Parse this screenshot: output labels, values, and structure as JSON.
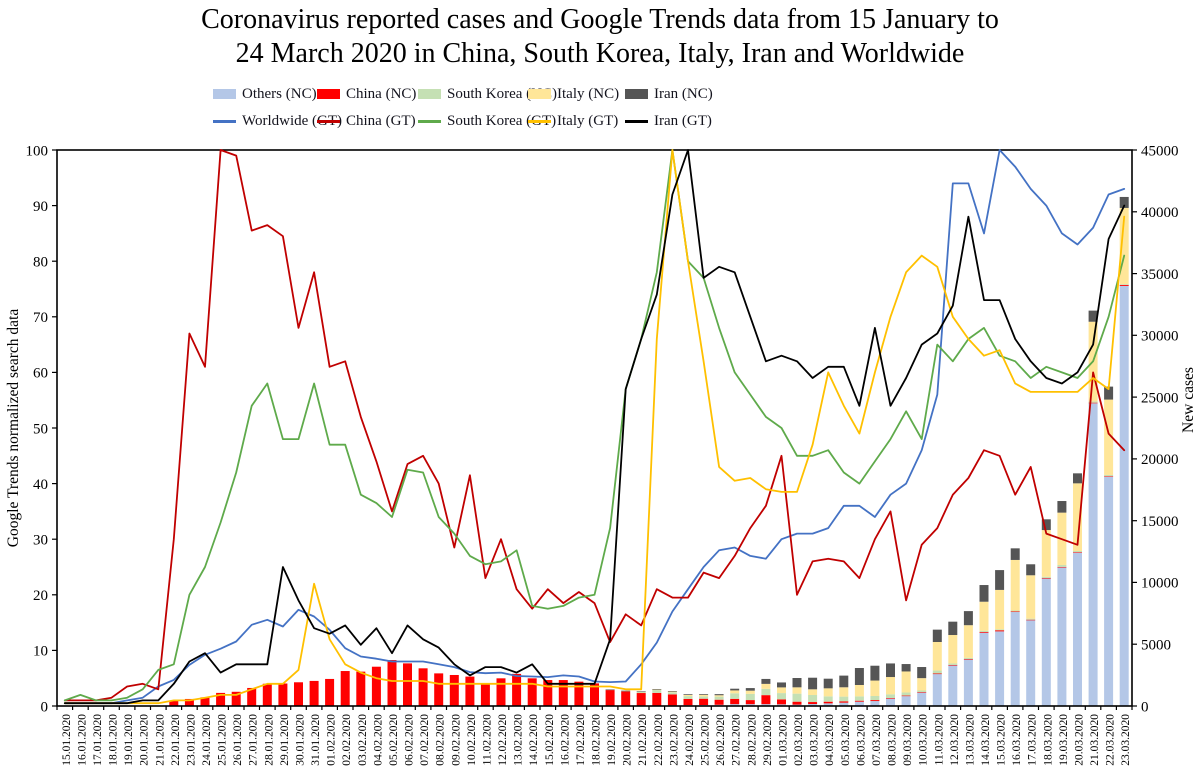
{
  "title": {
    "line1": "Coronavirus reported cases and Google Trends data from 15 January to",
    "line2": "24 March 2020 in China, South Korea, Italy, Iran and Worldwide"
  },
  "chart_data": {
    "type": "combo-stacked-bar-line",
    "title": "Coronavirus reported cases and Google Trends data from 15 January to 24 March 2020 in China, South Korea, Italy, Iran and Worldwide",
    "grid": "off",
    "legend_position": "top",
    "left_axis": {
      "title": "Google Trends normalized search data",
      "min": 0,
      "max": 100,
      "tick_step": 10
    },
    "right_axis": {
      "title": "New cases",
      "min": 0,
      "max": 45000,
      "tick_step": 5000
    },
    "x_labels": [
      "15.01.2020",
      "16.01.2020",
      "17.01.2020",
      "18.01.2020",
      "19.01.2020",
      "20.01.2020",
      "21.01.2020",
      "22.01.2020",
      "23.01.2020",
      "24.01.2020",
      "25.01.2020",
      "26.01.2020",
      "27.01.2020",
      "28.01.2020",
      "29.01.2020",
      "30.01.2020",
      "31.01.2020",
      "01.02.2020",
      "02.02.2020",
      "03.02.2020",
      "04.02.2020",
      "05.02.2020",
      "06.02.2020",
      "07.02.2020",
      "08.02.2020",
      "09.02.2020",
      "10.02.2020",
      "11.02.2020",
      "12.02.2020",
      "13.02.2020",
      "14.02.2020",
      "15.02.2020",
      "16.02.2020",
      "17.02.2020",
      "18.02.2020",
      "19.02.2020",
      "20.02.2020",
      "21.02.2020",
      "22.02.2020",
      "23.02.2020",
      "24.02.2020",
      "25.02.2020",
      "26.02.2020",
      "27.02.2020",
      "28.02.2020",
      "29.02.2020",
      "01.03.2020",
      "02.03.2020",
      "03.03.2020",
      "04.03.2020",
      "05.03.2020",
      "06.03.2020",
      "07.03.2020",
      "08.03.2020",
      "09.03.2020",
      "10.03.2020",
      "11.03.2020",
      "12.03.2020",
      "13.03.2020",
      "14.03.2020",
      "15.03.2020",
      "16.03.2020",
      "17.03.2020",
      "18.03.2020",
      "19.03.2020",
      "20.03.2020",
      "21.03.2020",
      "22.03.2020",
      "23.03.2020"
    ],
    "bar_series": [
      {
        "name": "Others (NC)",
        "color": "#B4C7E7",
        "axis": "right",
        "values": [
          0,
          0,
          0,
          0,
          0,
          0,
          0,
          0,
          0,
          0,
          0,
          0,
          0,
          0,
          0,
          0,
          0,
          0,
          0,
          0,
          0,
          0,
          0,
          0,
          0,
          0,
          0,
          0,
          0,
          0,
          0,
          0,
          0,
          0,
          0,
          10,
          20,
          30,
          40,
          50,
          60,
          80,
          100,
          150,
          150,
          150,
          135,
          110,
          160,
          215,
          270,
          350,
          400,
          600,
          800,
          1100,
          2600,
          3300,
          3780,
          5930,
          6040,
          7630,
          6960,
          10330,
          11220,
          12410,
          24500,
          18560,
          34000
        ]
      },
      {
        "name": "China (NC)",
        "color": "#FF0000",
        "axis": "right",
        "values": [
          0,
          0,
          0,
          0,
          0,
          0,
          0,
          440,
          570,
          700,
          1060,
          1150,
          1460,
          1800,
          1820,
          1920,
          2030,
          2190,
          2830,
          2780,
          3180,
          3720,
          3450,
          3050,
          2640,
          2510,
          2380,
          1840,
          2240,
          2600,
          2240,
          2100,
          2100,
          1970,
          1830,
          1290,
          1160,
          1020,
          1020,
          890,
          510,
          510,
          410,
          430,
          330,
          730,
          400,
          240,
          160,
          135,
          110,
          80,
          80,
          45,
          45,
          25,
          30,
          25,
          20,
          60,
          90,
          25,
          25,
          35,
          40,
          45,
          50,
          40,
          80
        ]
      },
      {
        "name": "South Korea (NC)",
        "color": "#C5E0B4",
        "axis": "right",
        "values": [
          0,
          0,
          0,
          0,
          0,
          0,
          0,
          0,
          0,
          0,
          0,
          0,
          0,
          0,
          0,
          0,
          0,
          0,
          0,
          0,
          0,
          0,
          0,
          0,
          0,
          0,
          0,
          0,
          0,
          0,
          0,
          0,
          0,
          0,
          0,
          35,
          50,
          100,
          230,
          170,
          230,
          190,
          250,
          450,
          500,
          510,
          510,
          650,
          570,
          430,
          380,
          350,
          330,
          300,
          250,
          130,
          240,
          120,
          100,
          100,
          75,
          75,
          85,
          95,
          150,
          90,
          100,
          100,
          65
        ]
      },
      {
        "name": "Italy (NC)",
        "color": "#FFE699",
        "axis": "right",
        "values": [
          0,
          0,
          0,
          0,
          0,
          0,
          0,
          0,
          0,
          0,
          0,
          0,
          0,
          0,
          0,
          0,
          0,
          0,
          0,
          0,
          0,
          0,
          0,
          0,
          0,
          0,
          0,
          0,
          0,
          0,
          0,
          0,
          0,
          0,
          0,
          0,
          0,
          20,
          60,
          80,
          90,
          130,
          110,
          230,
          260,
          400,
          460,
          510,
          460,
          650,
          755,
          920,
          1250,
          1400,
          1700,
          1000,
          2310,
          2300,
          2640,
          2350,
          3190,
          4090,
          3510,
          3780,
          4240,
          5475,
          6450,
          6100,
          6165
        ]
      },
      {
        "name": "Iran (NC)",
        "color": "#555555",
        "axis": "right",
        "values": [
          0,
          0,
          0,
          0,
          0,
          0,
          0,
          0,
          0,
          0,
          0,
          0,
          0,
          0,
          0,
          0,
          0,
          0,
          0,
          0,
          0,
          0,
          0,
          0,
          0,
          0,
          0,
          0,
          0,
          0,
          0,
          0,
          0,
          0,
          0,
          3,
          10,
          10,
          10,
          15,
          60,
          60,
          90,
          140,
          210,
          400,
          400,
          755,
          940,
          780,
          945,
          1375,
          1200,
          1100,
          600,
          900,
          1000,
          1080,
          1140,
          1350,
          1605,
          940,
          890,
          870,
          940,
          810,
          900,
          1050,
          890
        ]
      }
    ],
    "line_series": [
      {
        "name": "Worldwide (GT)",
        "color": "#4472C4",
        "axis": "left",
        "values": [
          0.5,
          0.5,
          0.5,
          0.5,
          1,
          1.5,
          3.5,
          4.7,
          7.4,
          9.2,
          10.3,
          11.6,
          14.6,
          15.5,
          14.3,
          17.3,
          16.1,
          13.7,
          10.4,
          8.9,
          8.5,
          8,
          8,
          8,
          7.5,
          7,
          6.1,
          5.9,
          6,
          5.4,
          5.3,
          5.2,
          5.5,
          5.3,
          4.4,
          4.3,
          4.4,
          7.5,
          11.4,
          17,
          21,
          25,
          28,
          28.5,
          27,
          26.5,
          30,
          31,
          31,
          32,
          36,
          36,
          34,
          38,
          40,
          46,
          56,
          94,
          94,
          85,
          100,
          97,
          93,
          90,
          85,
          83,
          86,
          92,
          93
        ]
      },
      {
        "name": "China (GT)",
        "color": "#C00000",
        "axis": "left",
        "values": [
          1,
          1,
          1,
          1.5,
          3.5,
          4,
          3,
          30,
          67,
          61,
          100,
          99,
          85.5,
          86.5,
          84.5,
          68,
          78,
          61,
          62,
          52,
          44,
          35,
          43.5,
          45,
          40,
          28.5,
          41.5,
          23,
          30,
          21,
          17.5,
          21,
          18.5,
          20.5,
          18.5,
          11.5,
          16.5,
          14.5,
          21,
          19.5,
          19.5,
          24,
          23,
          27,
          32,
          36,
          45,
          20,
          26,
          26.5,
          26,
          23,
          30,
          35,
          19,
          29,
          32,
          38,
          41,
          46,
          45,
          38,
          43,
          31,
          30,
          29,
          60,
          49,
          46
        ]
      },
      {
        "name": "South Korea (GT)",
        "color": "#5FAA4B",
        "axis": "left",
        "values": [
          1,
          2,
          1,
          1,
          1.5,
          3,
          6.5,
          7.5,
          20,
          25,
          33,
          42,
          54,
          58,
          48,
          48,
          58,
          47,
          47,
          38,
          36.5,
          34,
          42.5,
          42,
          34,
          31,
          27,
          25.5,
          26,
          28,
          18,
          17.5,
          18,
          19.5,
          20,
          32,
          57,
          66,
          78,
          100,
          80,
          77,
          68,
          60,
          56,
          52,
          50,
          45,
          45,
          46,
          42,
          40,
          44,
          48,
          53,
          48,
          65,
          62,
          66,
          68,
          63,
          62,
          59,
          61,
          60,
          59,
          62,
          70,
          81
        ]
      },
      {
        "name": "Italy (GT)",
        "color": "#FFC000",
        "axis": "left",
        "values": [
          0.5,
          0.5,
          0.5,
          0.5,
          0.5,
          0.5,
          0.5,
          1,
          1,
          1.5,
          2,
          2,
          3,
          4,
          4,
          6.5,
          22,
          12,
          7.5,
          6,
          5,
          4.5,
          4.5,
          4.5,
          4,
          4,
          4,
          4,
          4,
          4,
          4,
          3.5,
          3.5,
          3.5,
          3.5,
          3.5,
          3,
          3,
          66,
          100,
          80,
          62,
          43,
          40.5,
          41,
          39,
          38.5,
          38.5,
          47,
          60,
          54,
          49,
          60,
          70,
          78,
          81,
          79,
          70,
          66,
          63,
          64,
          58,
          56.5,
          56.5,
          56.5,
          56.5,
          59,
          57,
          88
        ]
      },
      {
        "name": "Iran (GT)",
        "color": "#000000",
        "axis": "left",
        "values": [
          0.5,
          0.5,
          0.5,
          0.5,
          0.5,
          1,
          1,
          4,
          8,
          9.5,
          6,
          7.5,
          7.5,
          7.5,
          25,
          19,
          14,
          13,
          14.5,
          11,
          14,
          9.5,
          14.5,
          12,
          10.5,
          7.5,
          5.5,
          7,
          7,
          6,
          7.5,
          4,
          4,
          4,
          4,
          12,
          57,
          66,
          74,
          92,
          100,
          77,
          79,
          78,
          70,
          62,
          63,
          62,
          59,
          61,
          61,
          54,
          68,
          54,
          59,
          65,
          67,
          72,
          88,
          73,
          73,
          66,
          62,
          59,
          58,
          60,
          65,
          84,
          90
        ]
      }
    ]
  }
}
